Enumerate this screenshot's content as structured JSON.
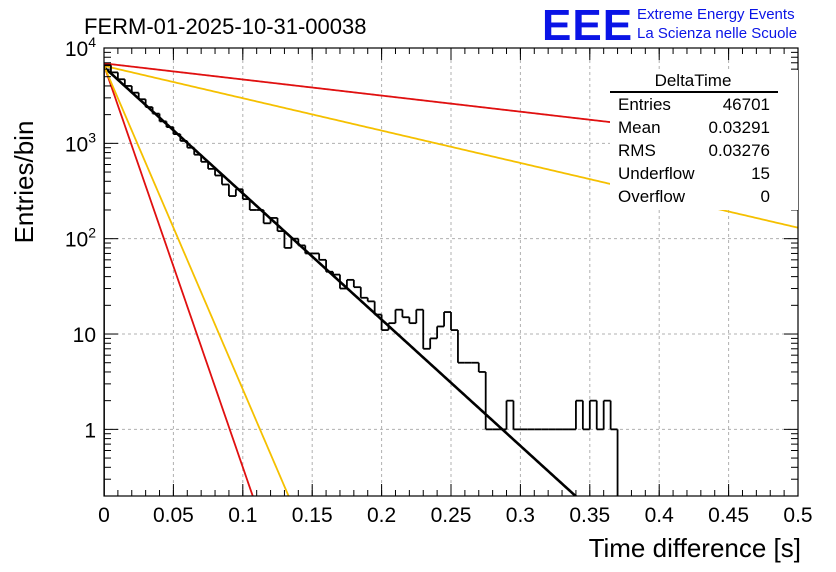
{
  "chart_data": {
    "type": "histogram",
    "title": "FERM-01-2025-10-31-00038",
    "xlabel": "Time difference [s]",
    "ylabel": "Entries/bin",
    "xlim": [
      0,
      0.5
    ],
    "ylim": [
      0.2,
      10000
    ],
    "yscale": "log",
    "grid": true,
    "x_ticks": [
      "0",
      "0.05",
      "0.1",
      "0.15",
      "0.2",
      "0.25",
      "0.3",
      "0.35",
      "0.4",
      "0.45",
      "0.5"
    ],
    "y_ticks": [
      {
        "value": 1,
        "label": "1"
      },
      {
        "value": 10,
        "label": "10"
      },
      {
        "value": 100,
        "label": "10",
        "exp": "2"
      },
      {
        "value": 1000,
        "label": "10",
        "exp": "3"
      },
      {
        "value": 10000,
        "label": "10",
        "exp": "4"
      }
    ],
    "histogram": {
      "name": "DeltaTime",
      "bin_width": 0.005,
      "bins_start": 0,
      "counts": [
        6600,
        5550,
        4700,
        4000,
        3400,
        2900,
        2400,
        2050,
        1700,
        1480,
        1250,
        1060,
        900,
        760,
        640,
        540,
        460,
        370,
        280,
        330,
        260,
        200,
        200,
        145,
        165,
        120,
        80,
        100,
        85,
        70,
        70,
        60,
        45,
        42,
        30,
        37,
        31,
        24,
        22,
        16,
        11,
        13,
        18,
        15,
        13,
        18,
        7,
        9,
        12,
        17,
        11,
        5,
        5,
        5,
        4,
        1,
        1,
        1,
        2,
        1,
        1,
        1,
        1,
        1,
        1,
        1,
        1,
        1,
        2,
        1,
        2,
        1,
        2,
        1
      ]
    },
    "fit_lines": [
      {
        "name": "fit",
        "color": "#000000",
        "A": 6300,
        "tau": 0.0328
      },
      {
        "name": "red-slow",
        "color": "#e01010",
        "A": 6900,
        "tau": 0.2571
      },
      {
        "name": "yellow-slow",
        "color": "#f5c000",
        "A": 6500,
        "tau": 0.1279
      },
      {
        "name": "red-fast",
        "color": "#e01010",
        "A": 6600,
        "tau": 0.0103
      },
      {
        "name": "yellow-fast",
        "color": "#f5c000",
        "A": 6500,
        "tau": 0.0128
      }
    ],
    "stats_box": {
      "title": "DeltaTime",
      "rows": [
        {
          "label": "Entries",
          "value": "46701"
        },
        {
          "label": "Mean",
          "value": "0.03291"
        },
        {
          "label": "RMS",
          "value": "0.03276"
        },
        {
          "label": "Underflow",
          "value": "15"
        },
        {
          "label": "Overflow",
          "value": "0"
        }
      ]
    }
  },
  "logo": {
    "mark": "EEE",
    "line1": "Extreme Energy Events",
    "line2": "La Scienza nelle Scuole"
  },
  "colors": {
    "logo": "#0a14e6",
    "fit": "#000000",
    "red": "#e01010",
    "yellow": "#f5c000"
  }
}
